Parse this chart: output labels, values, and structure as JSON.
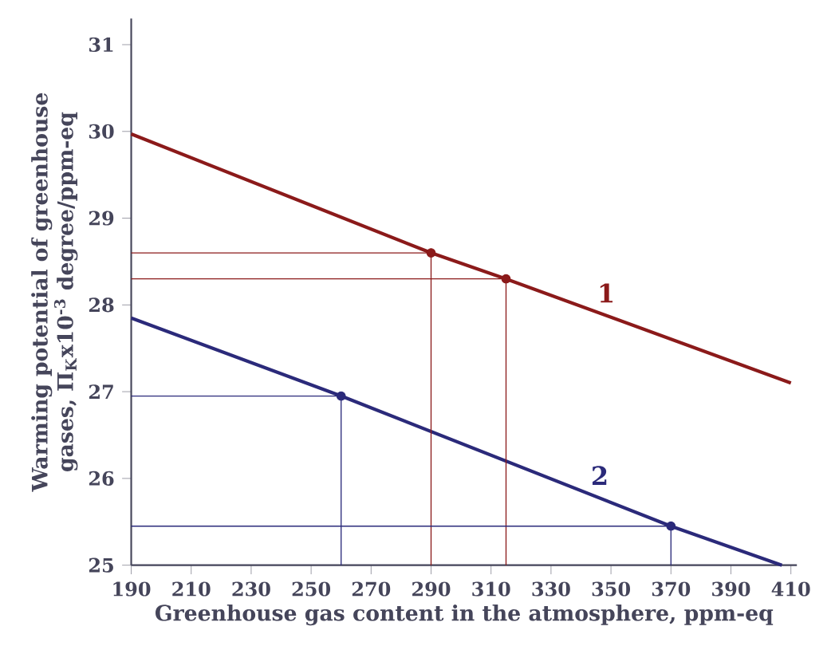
{
  "chart_data": {
    "type": "line",
    "xlabel": "Greenhouse gas content in the atmosphere, ppm-eq",
    "ylabel": "Warming potential of greenhouse gases, Π$_{K}$x10$^{-3}$ degree/ppm-eq",
    "xlim": [
      190,
      412
    ],
    "ylim": [
      25,
      31.3
    ],
    "xticks": [
      190,
      210,
      230,
      250,
      270,
      290,
      310,
      330,
      350,
      370,
      390,
      410
    ],
    "yticks": [
      25,
      26,
      27,
      28,
      29,
      30,
      31
    ],
    "grid": false,
    "legend": false,
    "marker": "none",
    "series": [
      {
        "name": "1",
        "color": "#8b1a1a",
        "x": [
          190,
          290,
          315,
          410
        ],
        "values": [
          29.97,
          28.6,
          28.3,
          27.1
        ]
      },
      {
        "name": "2",
        "color": "#2b2a7a",
        "x": [
          190,
          260,
          370,
          407
        ],
        "values": [
          27.85,
          26.95,
          25.45,
          25
        ]
      },
      {
        "type": "scatter",
        "marker": "circle",
        "color": "#8b1a1a",
        "x": [
          290,
          315
        ],
        "values": [
          28.6,
          28.3
        ]
      },
      {
        "type": "scatter",
        "marker": "circle",
        "color": "#2b2a7a",
        "x": [
          260,
          370
        ],
        "values": [
          26.95,
          25.45
        ]
      },
      {
        "color": "#8b1a1a",
        "x": [
          190,
          290,
          290
        ],
        "values": [
          28.6,
          28.6,
          25
        ]
      },
      {
        "color": "#8b1a1a",
        "x": [
          190,
          315,
          315
        ],
        "values": [
          28.3,
          28.3,
          25
        ]
      },
      {
        "color": "#2b2a7a",
        "x": [
          190,
          260,
          260
        ],
        "values": [
          26.95,
          26.95,
          25
        ]
      },
      {
        "color": "#2b2a7a",
        "x": [
          190,
          370,
          370
        ],
        "values": [
          25.45,
          25.45,
          25
        ]
      }
    ]
  }
}
